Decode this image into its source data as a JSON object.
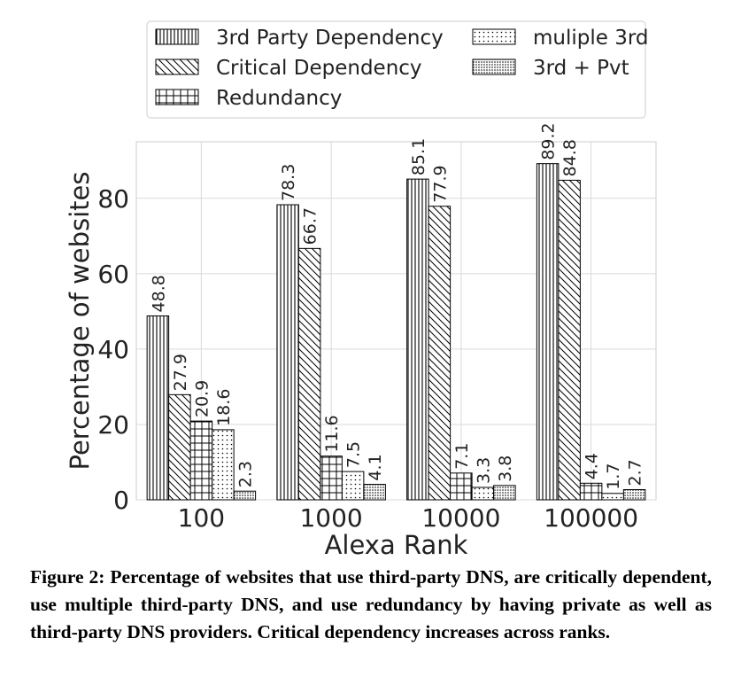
{
  "chart_data": {
    "type": "bar",
    "xlabel": "Alexa Rank",
    "ylabel": "Percentage of websites",
    "ylim": [
      0,
      95
    ],
    "yticks": [
      0,
      20,
      40,
      60,
      80
    ],
    "grid": true,
    "legend_position": "top",
    "categories": [
      "100",
      "1000",
      "10000",
      "100000"
    ],
    "series": [
      {
        "name": "3rd Party Dependency",
        "pattern": "vertical-lines",
        "values": [
          48.8,
          78.3,
          85.1,
          89.2
        ],
        "labels": [
          "48.8",
          "78.3",
          "85.1",
          "89.2"
        ]
      },
      {
        "name": "Critical Dependency",
        "pattern": "diagonal-lines",
        "values": [
          27.9,
          66.7,
          77.9,
          84.8
        ],
        "labels": [
          "27.9",
          "66.7",
          "77.9",
          "84.8"
        ]
      },
      {
        "name": "Redundancy",
        "pattern": "grid",
        "values": [
          20.9,
          11.6,
          7.1,
          4.4
        ],
        "labels": [
          "20.9",
          "11.6",
          "7.1",
          "4.4"
        ]
      },
      {
        "name": "muliple 3rd",
        "pattern": "sparse-dots",
        "values": [
          18.6,
          7.5,
          3.3,
          1.7
        ],
        "labels": [
          "18.6",
          "7.5",
          "3.3",
          "1.7"
        ]
      },
      {
        "name": "3rd + Pvt",
        "pattern": "dense-dots",
        "values": [
          2.3,
          4.1,
          3.8,
          2.7
        ],
        "labels": [
          "2.3",
          "4.1",
          "3.8",
          "2.7"
        ]
      }
    ]
  },
  "caption": {
    "label": "Figure 2:",
    "text": "Percentage of websites that use third-party DNS, are critically dependent, use multiple third-party DNS, and use redundancy by having private as well as third-party DNS providers. Critical dependency increases across ranks."
  }
}
